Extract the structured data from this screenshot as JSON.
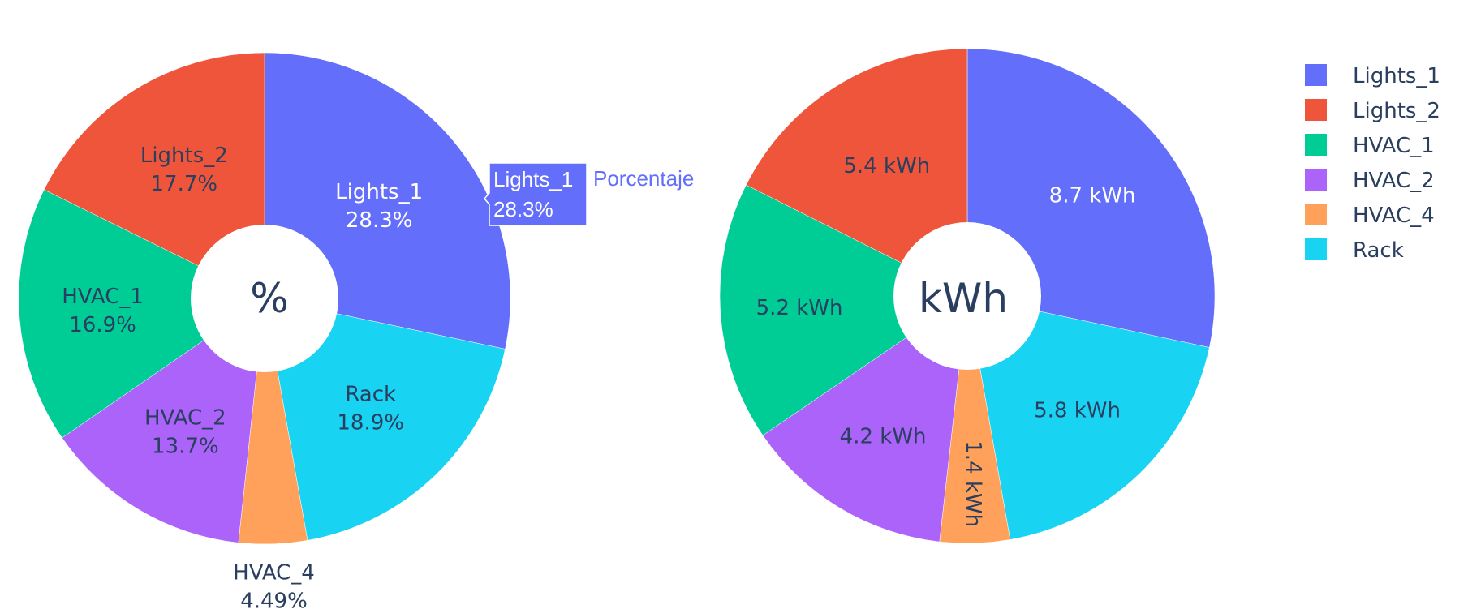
{
  "chart_data": [
    {
      "type": "pie",
      "hole": true,
      "center_label": "%",
      "categories": [
        "Lights_1",
        "Rack",
        "HVAC_4",
        "HVAC_2",
        "HVAC_1",
        "Lights_2"
      ],
      "values": [
        28.3,
        18.9,
        4.49,
        13.7,
        16.9,
        17.7
      ],
      "slice_labels": [
        [
          "Lights_1",
          "28.3%"
        ],
        [
          "Rack",
          "18.9%"
        ],
        [
          "HVAC_4",
          "4.49%"
        ],
        [
          "HVAC_2",
          "13.7%"
        ],
        [
          "HVAC_1",
          "16.9%"
        ],
        [
          "Lights_2",
          "17.7%"
        ]
      ]
    },
    {
      "type": "pie",
      "hole": true,
      "center_label": "kWh",
      "categories": [
        "Lights_1",
        "Rack",
        "HVAC_4",
        "HVAC_2",
        "HVAC_1",
        "Lights_2"
      ],
      "values": [
        8.7,
        5.8,
        1.4,
        4.2,
        5.2,
        5.4
      ],
      "slice_labels": [
        [
          "8.7 kWh"
        ],
        [
          "5.8 kWh"
        ],
        [
          "1.4 kWh"
        ],
        [
          "4.2 kWh"
        ],
        [
          "5.2 kWh"
        ],
        [
          "5.4 kWh"
        ]
      ]
    }
  ],
  "colors": {
    "Lights_1": "#636EFA",
    "Lights_2": "#EF553B",
    "HVAC_1": "#00CC96",
    "HVAC_2": "#AB63FA",
    "HVAC_4": "#FFA15A",
    "Rack": "#19D3F3"
  },
  "legend": {
    "items": [
      "Lights_1",
      "Lights_2",
      "HVAC_1",
      "HVAC_2",
      "HVAC_4",
      "Rack"
    ]
  },
  "tooltip": {
    "label": "Lights_1",
    "value": "28.3%",
    "trace_name": "Porcentaje"
  }
}
